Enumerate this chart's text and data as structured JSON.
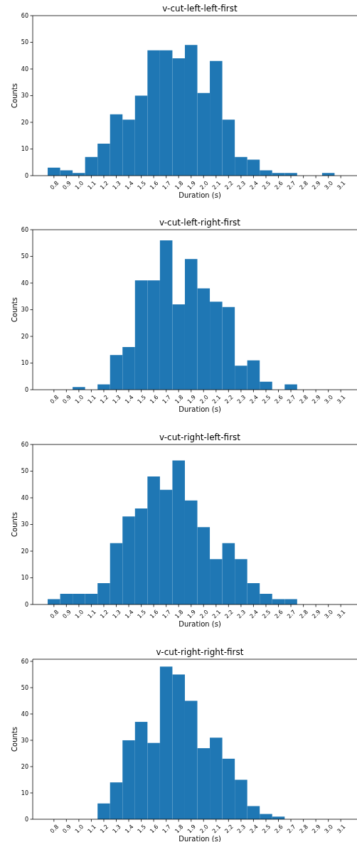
{
  "chart_data": [
    {
      "type": "histogram",
      "title": "v-cut-left-left-first",
      "xlabel": "Duration (s)",
      "ylabel": "Counts",
      "color": "#1f77b4",
      "bins": [
        0.75,
        0.85,
        0.95,
        1.05,
        1.15,
        1.25,
        1.35,
        1.45,
        1.55,
        1.65,
        1.75,
        1.85,
        1.95,
        2.05,
        2.15,
        2.25,
        2.35,
        2.45,
        2.55,
        2.65,
        2.75,
        2.85,
        2.95,
        3.05,
        3.15
      ],
      "values": [
        3,
        2,
        1,
        7,
        12,
        23,
        21,
        30,
        47,
        47,
        44,
        49,
        31,
        43,
        21,
        7,
        6,
        2,
        1,
        1,
        0,
        0,
        1,
        0
      ],
      "xlim": [
        0.63,
        3.23
      ],
      "ylim": [
        0,
        60
      ],
      "yticks": [
        0,
        10,
        20,
        30,
        40,
        50,
        60
      ],
      "xticks": [
        0.8,
        0.9,
        {
          "value": 1,
          "label": "1.0"
        },
        1.1,
        1.2,
        1.3,
        1.4,
        1.5,
        1.6,
        1.7,
        1.8,
        1.9,
        {
          "value": 2,
          "label": "2.0"
        },
        2.1,
        2.2,
        2.3,
        2.4,
        2.5,
        2.6,
        2.7,
        2.8,
        2.9,
        {
          "value": 3,
          "label": "3.0"
        },
        3.1
      ]
    },
    {
      "type": "histogram",
      "title": "v-cut-left-right-first",
      "xlabel": "Duration (s)",
      "ylabel": "Counts",
      "color": "#1f77b4",
      "bins": [
        0.75,
        0.85,
        0.95,
        1.05,
        1.15,
        1.25,
        1.35,
        1.45,
        1.55,
        1.65,
        1.75,
        1.85,
        1.95,
        2.05,
        2.15,
        2.25,
        2.35,
        2.45,
        2.55,
        2.65,
        2.75,
        2.85,
        2.95,
        3.05,
        3.15
      ],
      "values": [
        0,
        0,
        1,
        0,
        2,
        13,
        16,
        41,
        41,
        56,
        32,
        49,
        38,
        33,
        31,
        9,
        11,
        3,
        0,
        2,
        0,
        0,
        0,
        0
      ],
      "xlim": [
        0.63,
        3.23
      ],
      "ylim": [
        0,
        60
      ],
      "yticks": [
        0,
        10,
        20,
        30,
        40,
        50,
        60
      ],
      "xticks": [
        0.8,
        0.9,
        {
          "value": 1,
          "label": "1.0"
        },
        1.1,
        1.2,
        1.3,
        1.4,
        1.5,
        1.6,
        1.7,
        1.8,
        1.9,
        {
          "value": 2,
          "label": "2.0"
        },
        2.1,
        2.2,
        2.3,
        2.4,
        2.5,
        2.6,
        2.7,
        2.8,
        2.9,
        {
          "value": 3,
          "label": "3.0"
        },
        3.1
      ]
    },
    {
      "type": "histogram",
      "title": "v-cut-right-left-first",
      "xlabel": "Duration (s)",
      "ylabel": "Counts",
      "color": "#1f77b4",
      "bins": [
        0.75,
        0.85,
        0.95,
        1.05,
        1.15,
        1.25,
        1.35,
        1.45,
        1.55,
        1.65,
        1.75,
        1.85,
        1.95,
        2.05,
        2.15,
        2.25,
        2.35,
        2.45,
        2.55,
        2.65,
        2.75,
        2.85,
        2.95,
        3.05,
        3.15
      ],
      "values": [
        2,
        4,
        4,
        4,
        8,
        23,
        33,
        36,
        48,
        43,
        54,
        39,
        29,
        17,
        23,
        17,
        8,
        4,
        2,
        2,
        0,
        0,
        0,
        0
      ],
      "xlim": [
        0.63,
        3.23
      ],
      "ylim": [
        0,
        60
      ],
      "yticks": [
        0,
        10,
        20,
        30,
        40,
        50,
        60
      ],
      "xticks": [
        0.8,
        0.9,
        {
          "value": 1,
          "label": "1.0"
        },
        1.1,
        1.2,
        1.3,
        1.4,
        1.5,
        1.6,
        1.7,
        1.8,
        1.9,
        {
          "value": 2,
          "label": "2.0"
        },
        2.1,
        2.2,
        2.3,
        2.4,
        2.5,
        2.6,
        2.7,
        2.8,
        2.9,
        {
          "value": 3,
          "label": "3.0"
        },
        3.1
      ]
    },
    {
      "type": "histogram",
      "title": "v-cut-right-right-first",
      "xlabel": "Duration (s)",
      "ylabel": "Counts",
      "color": "#1f77b4",
      "bins": [
        0.75,
        0.85,
        0.95,
        1.05,
        1.15,
        1.25,
        1.35,
        1.45,
        1.55,
        1.65,
        1.75,
        1.85,
        1.95,
        2.05,
        2.15,
        2.25,
        2.35,
        2.45,
        2.55,
        2.65,
        2.75,
        2.85,
        2.95,
        3.05,
        3.15
      ],
      "values": [
        0,
        0,
        0,
        0,
        6,
        14,
        30,
        37,
        29,
        58,
        55,
        45,
        27,
        31,
        23,
        15,
        5,
        2,
        1,
        0,
        0,
        0,
        0,
        0
      ],
      "xlim": [
        0.63,
        3.23
      ],
      "ylim": [
        0,
        60.8
      ],
      "yticks": [
        0,
        10,
        20,
        30,
        40,
        50,
        60
      ],
      "xticks": [
        0.8,
        0.9,
        {
          "value": 1,
          "label": "1.0"
        },
        1.1,
        1.2,
        1.3,
        1.4,
        1.5,
        1.6,
        1.7,
        1.8,
        1.9,
        {
          "value": 2,
          "label": "2.0"
        },
        2.1,
        2.2,
        2.3,
        2.4,
        2.5,
        2.6,
        2.7,
        2.8,
        2.9,
        {
          "value": 3,
          "label": "3.0"
        },
        3.1
      ]
    }
  ]
}
